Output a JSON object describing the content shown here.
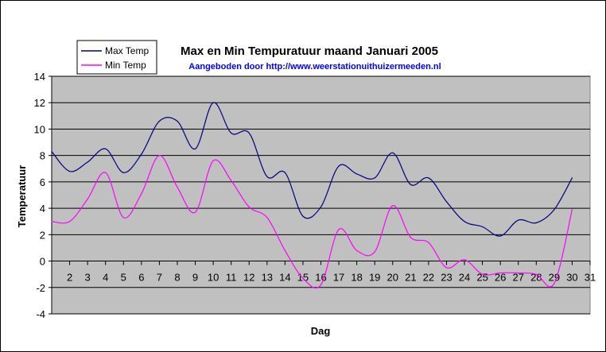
{
  "chart_data": {
    "type": "line",
    "title": "Max en Min Tempuratuur maand Januari 2005",
    "subtitle": "Aangeboden door http://www.weerstationuithuizermeeden.nl",
    "xlabel": "Dag",
    "ylabel": "Temperatuur",
    "xlim": [
      1,
      31
    ],
    "ylim": [
      -4,
      14
    ],
    "y_ticks": [
      -4,
      -2,
      0,
      2,
      4,
      6,
      8,
      10,
      12,
      14
    ],
    "x_ticks": [
      1,
      2,
      3,
      4,
      5,
      6,
      7,
      8,
      9,
      10,
      11,
      12,
      13,
      14,
      15,
      16,
      17,
      18,
      19,
      20,
      21,
      22,
      23,
      24,
      25,
      26,
      27,
      28,
      29,
      30,
      31
    ],
    "x_tick_labels": [
      "",
      "2",
      "3",
      "4",
      "5",
      "6",
      "7",
      "8",
      "9",
      "10",
      "11",
      "12",
      "13",
      "14",
      "15",
      "16",
      "17",
      "18",
      "19",
      "20",
      "21",
      "22",
      "23",
      "24",
      "25",
      "26",
      "27",
      "28",
      "29",
      "30",
      "31"
    ],
    "grid": true,
    "legend_position": "top-left",
    "plot_background": "#c0c0c0",
    "series": [
      {
        "name": "Max Temp",
        "color": "#000080",
        "x": [
          1,
          2,
          3,
          4,
          5,
          6,
          7,
          8,
          9,
          10,
          11,
          12,
          13,
          14,
          15,
          16,
          17,
          18,
          19,
          20,
          21,
          22,
          23,
          24,
          25,
          26,
          27,
          28,
          29,
          30
        ],
        "values": [
          8.3,
          6.8,
          7.5,
          8.5,
          6.7,
          8.1,
          10.6,
          10.6,
          8.5,
          12.0,
          9.7,
          9.7,
          6.4,
          6.7,
          3.4,
          4.1,
          7.2,
          6.6,
          6.3,
          8.2,
          5.8,
          6.3,
          4.5,
          3.0,
          2.6,
          1.9,
          3.1,
          2.9,
          3.9,
          6.3
        ]
      },
      {
        "name": "Min Temp",
        "color": "#ff00ff",
        "x": [
          1,
          2,
          3,
          4,
          5,
          6,
          7,
          8,
          9,
          10,
          11,
          12,
          13,
          14,
          15,
          16,
          17,
          18,
          19,
          20,
          21,
          22,
          23,
          24,
          25,
          26,
          27,
          28,
          29,
          30
        ],
        "values": [
          3.0,
          3.0,
          4.7,
          6.7,
          3.3,
          5.1,
          8.0,
          5.6,
          3.7,
          7.6,
          6.1,
          4.1,
          3.3,
          0.8,
          -1.3,
          -1.8,
          2.4,
          0.8,
          0.7,
          4.2,
          1.8,
          1.4,
          -0.5,
          0.1,
          -1.0,
          -0.9,
          -0.9,
          -1.0,
          -1.7,
          3.9
        ]
      }
    ]
  }
}
